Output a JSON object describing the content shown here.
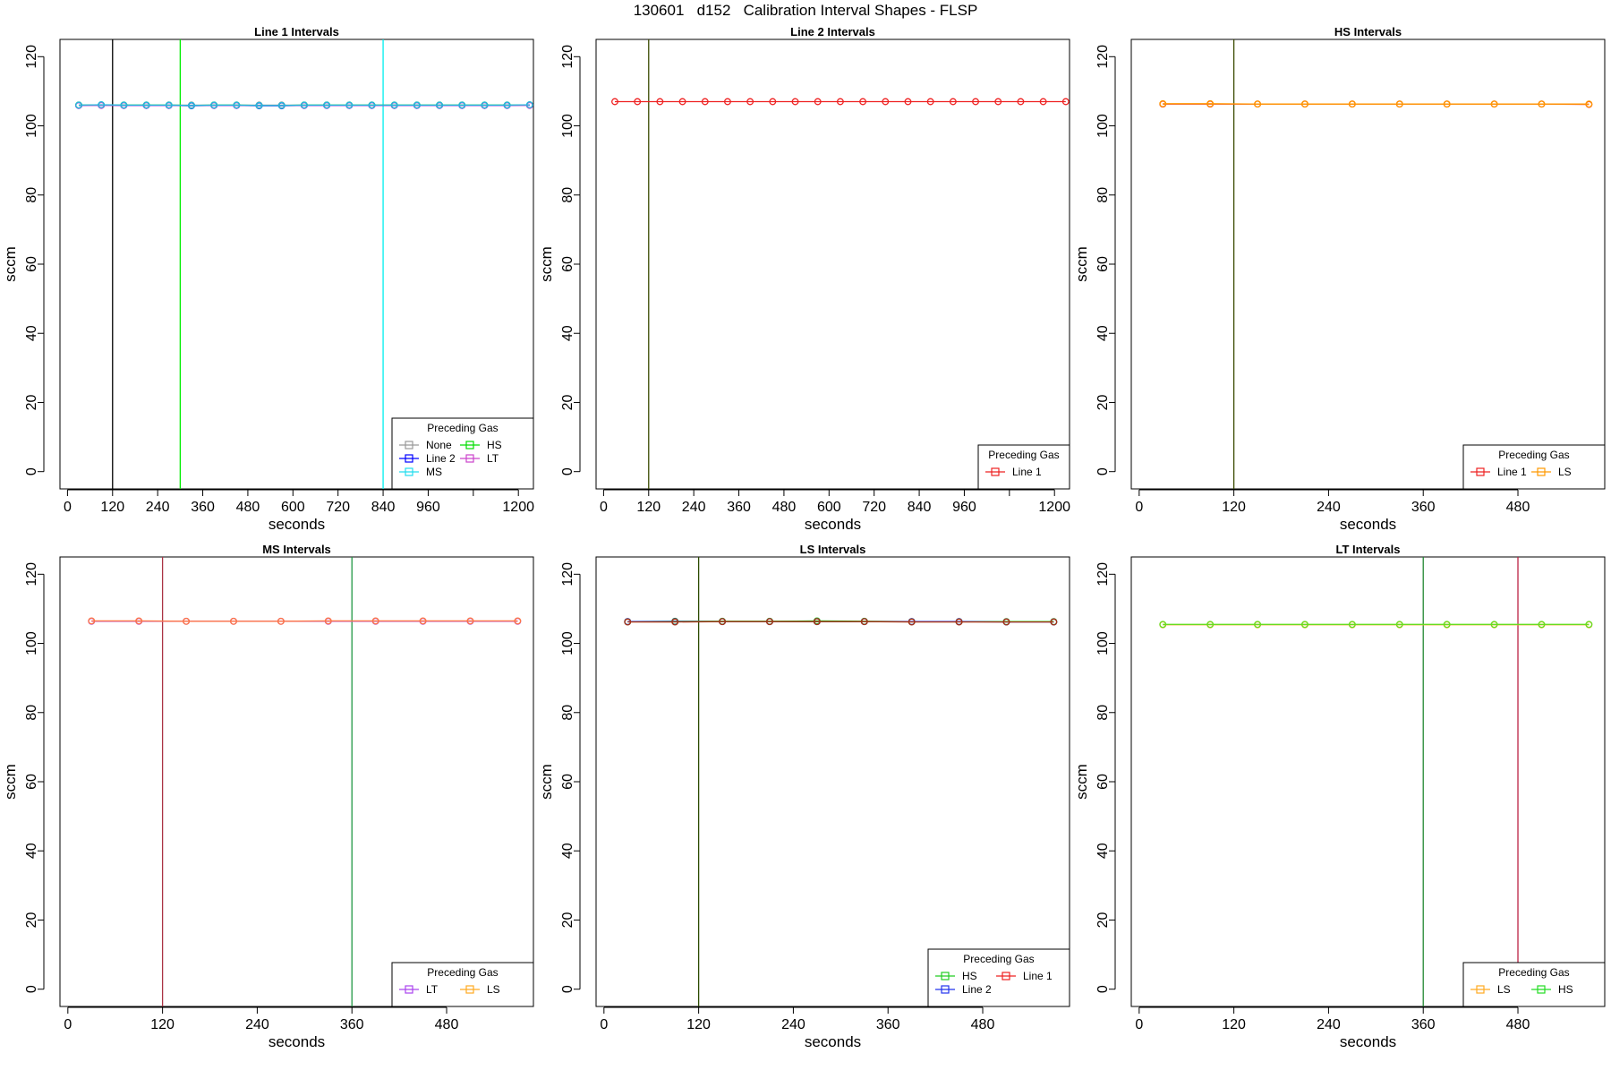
{
  "figure_title": "130601   d152   Calibration Interval Shapes - FLSP",
  "chart_data": [
    {
      "type": "line",
      "title": "Line 1 Intervals",
      "xlabel": "seconds",
      "ylabel": "sccm",
      "xlim": [
        -20,
        1240
      ],
      "ylim": [
        -5,
        125
      ],
      "xticks": [
        0,
        120,
        240,
        360,
        480,
        600,
        720,
        840,
        960,
        1080,
        1200
      ],
      "xtick_labels": [
        "0",
        "120",
        "240",
        "360",
        "480",
        "600",
        "720",
        "840",
        "960",
        "",
        "1200"
      ],
      "yticks": [
        0,
        20,
        40,
        60,
        80,
        100,
        120
      ],
      "vlines": [
        {
          "x": 120,
          "color": "#000000"
        },
        {
          "x": 300,
          "color": "#00ee00"
        },
        {
          "x": 840,
          "color": "#00eeee"
        }
      ],
      "series": [
        {
          "name": "None",
          "color": "#999999",
          "x": [
            30,
            90,
            150,
            210,
            270,
            330,
            390,
            450,
            510,
            570,
            630,
            690,
            750,
            810,
            870,
            930,
            990,
            1050,
            1110,
            1170,
            1230
          ],
          "y": [
            106,
            106,
            106,
            106,
            106,
            106,
            106,
            106,
            106,
            106,
            106,
            106,
            106,
            106,
            106,
            106,
            106,
            106,
            106,
            106,
            106
          ]
        },
        {
          "name": "Line 2",
          "color": "#0000ff",
          "x": [
            30,
            90,
            150,
            210,
            270,
            330,
            390,
            450,
            510,
            570,
            630,
            690,
            750,
            810,
            870,
            930,
            990,
            1050,
            1110,
            1170,
            1230
          ],
          "y": [
            105.9,
            106,
            105.9,
            105.9,
            105.9,
            105.8,
            105.9,
            105.9,
            105.8,
            105.8,
            105.9,
            105.9,
            105.9,
            105.9,
            105.9,
            105.9,
            105.9,
            105.9,
            105.9,
            105.9,
            106
          ]
        },
        {
          "name": "HS",
          "color": "#00dd00",
          "x": [
            30,
            90,
            150,
            210,
            270,
            330,
            390,
            450,
            510,
            570,
            630,
            690,
            750,
            810,
            870,
            930,
            990,
            1050,
            1110,
            1170,
            1230
          ],
          "y": [
            106,
            106,
            106,
            106,
            106,
            105.9,
            106,
            106,
            105.9,
            105.9,
            106,
            106,
            106,
            106,
            106,
            106,
            106,
            106,
            106,
            106,
            106
          ]
        },
        {
          "name": "LT",
          "color": "#cc44cc",
          "x": [
            30,
            90,
            150,
            210,
            270,
            330,
            390,
            450,
            510,
            570,
            630,
            690,
            750,
            810,
            870,
            930,
            990,
            1050,
            1110,
            1170,
            1230
          ],
          "y": [
            105.9,
            105.9,
            105.9,
            105.9,
            105.9,
            105.9,
            105.9,
            105.9,
            105.9,
            105.9,
            105.9,
            105.9,
            105.9,
            105.9,
            105.9,
            105.9,
            105.9,
            105.9,
            105.9,
            105.9,
            105.9
          ]
        },
        {
          "name": "MS",
          "color": "#22bbdd",
          "x": [
            30,
            90,
            150,
            210,
            270,
            330,
            390,
            450,
            510,
            570,
            630,
            690,
            750,
            810,
            870,
            930,
            990,
            1050,
            1110,
            1170,
            1230
          ],
          "y": [
            106,
            106.1,
            106,
            106,
            106,
            105.9,
            106,
            106,
            105.9,
            105.9,
            106,
            106,
            106,
            106,
            106,
            106,
            106,
            106,
            106,
            106,
            106.1
          ]
        }
      ],
      "legend": {
        "title": "Preceding Gas",
        "columns": 2,
        "entries": [
          "None",
          "HS",
          "Line 2",
          "LT",
          "MS"
        ],
        "colors": [
          "#999999",
          "#00dd00",
          "#0000ff",
          "#cc44cc",
          "#22ddee"
        ],
        "placement": "bottom-right"
      }
    },
    {
      "type": "line",
      "title": "Line 2 Intervals",
      "xlabel": "seconds",
      "ylabel": "sccm",
      "xlim": [
        -20,
        1240
      ],
      "ylim": [
        -5,
        125
      ],
      "xticks": [
        0,
        120,
        240,
        360,
        480,
        600,
        720,
        840,
        960,
        1080,
        1200
      ],
      "xtick_labels": [
        "0",
        "120",
        "240",
        "360",
        "480",
        "600",
        "720",
        "840",
        "960",
        "",
        "1200"
      ],
      "yticks": [
        0,
        20,
        40,
        60,
        80,
        100,
        120
      ],
      "vlines": [
        {
          "x": 120,
          "color": "#3a4a00"
        }
      ],
      "series": [
        {
          "name": "Line 1",
          "color": "#ee2222",
          "x": [
            30,
            90,
            150,
            210,
            270,
            330,
            390,
            450,
            510,
            570,
            630,
            690,
            750,
            810,
            870,
            930,
            990,
            1050,
            1110,
            1170,
            1230
          ],
          "y": [
            107,
            107,
            107,
            107,
            107,
            107,
            107,
            107,
            107,
            107,
            107,
            107,
            107,
            107,
            107,
            107,
            107,
            107,
            107,
            107,
            107
          ]
        }
      ],
      "legend": {
        "title": "Preceding Gas",
        "columns": 1,
        "entries": [
          "Line 1"
        ],
        "colors": [
          "#ee2222"
        ],
        "placement": "bottom-right"
      }
    },
    {
      "type": "line",
      "title": "HS Intervals",
      "xlabel": "seconds",
      "ylabel": "sccm",
      "xlim": [
        -10,
        590
      ],
      "ylim": [
        -5,
        125
      ],
      "xticks": [
        0,
        120,
        240,
        360,
        480
      ],
      "xtick_labels": [
        "0",
        "120",
        "240",
        "360",
        "480"
      ],
      "yticks": [
        0,
        20,
        40,
        60,
        80,
        100,
        120
      ],
      "vlines": [
        {
          "x": 120,
          "color": "#3a4a00"
        }
      ],
      "series": [
        {
          "name": "Line 1",
          "color": "#ee2222",
          "x": [
            30,
            90,
            150,
            210,
            270,
            330,
            390,
            450,
            510,
            570
          ],
          "y": [
            106.3,
            106.3,
            106.3,
            106.3,
            106.3,
            106.3,
            106.3,
            106.3,
            106.3,
            106.2
          ]
        },
        {
          "name": "LS",
          "color": "#ff9900",
          "x": [
            30,
            90,
            150,
            210,
            270,
            330,
            390,
            450,
            510,
            570
          ],
          "y": [
            106.4,
            106.4,
            106.3,
            106.3,
            106.3,
            106.3,
            106.3,
            106.3,
            106.3,
            106.3
          ]
        }
      ],
      "legend": {
        "title": "Preceding Gas",
        "columns": 2,
        "entries": [
          "Line 1",
          "LS"
        ],
        "colors": [
          "#ee2222",
          "#ff9900"
        ],
        "placement": "bottom-right"
      }
    },
    {
      "type": "line",
      "title": "MS Intervals",
      "xlabel": "seconds",
      "ylabel": "sccm",
      "xlim": [
        -10,
        590
      ],
      "ylim": [
        -5,
        125
      ],
      "xticks": [
        0,
        120,
        240,
        360,
        480
      ],
      "xtick_labels": [
        "0",
        "120",
        "240",
        "360",
        "480"
      ],
      "yticks": [
        0,
        20,
        40,
        60,
        80,
        100,
        120
      ],
      "vlines": [
        {
          "x": 120,
          "color": "#aa3344"
        },
        {
          "x": 360,
          "color": "#229944"
        }
      ],
      "series": [
        {
          "name": "LT",
          "color": "#aa44ee",
          "x": [
            30,
            90,
            150,
            210,
            270,
            330,
            390,
            450,
            510,
            570
          ],
          "y": [
            106.4,
            106.4,
            106.4,
            106.4,
            106.4,
            106.4,
            106.4,
            106.4,
            106.4,
            106.4
          ]
        },
        {
          "name": "LS",
          "color": "#ff7744",
          "x": [
            30,
            90,
            150,
            210,
            270,
            330,
            390,
            450,
            510,
            570
          ],
          "y": [
            106.5,
            106.5,
            106.4,
            106.4,
            106.4,
            106.5,
            106.5,
            106.5,
            106.5,
            106.5
          ]
        }
      ],
      "legend": {
        "title": "Preceding Gas",
        "columns": 2,
        "entries": [
          "LT",
          "LS"
        ],
        "colors": [
          "#aa44ee",
          "#ffaa22"
        ],
        "placement": "bottom-right"
      }
    },
    {
      "type": "line",
      "title": "LS Intervals",
      "xlabel": "seconds",
      "ylabel": "sccm",
      "xlim": [
        -10,
        590
      ],
      "ylim": [
        -5,
        125
      ],
      "xticks": [
        0,
        120,
        240,
        360,
        480
      ],
      "xtick_labels": [
        "0",
        "120",
        "240",
        "360",
        "480"
      ],
      "yticks": [
        0,
        20,
        40,
        60,
        80,
        100,
        120
      ],
      "vlines": [
        {
          "x": 120,
          "color": "#2a4a00"
        }
      ],
      "series": [
        {
          "name": "HS",
          "color": "#22cc22",
          "x": [
            30,
            90,
            150,
            210,
            270,
            330,
            390,
            450,
            510,
            570
          ],
          "y": [
            106.3,
            106.4,
            106.4,
            106.4,
            106.5,
            106.4,
            106.3,
            106.3,
            106.3,
            106.3
          ]
        },
        {
          "name": "Line 2",
          "color": "#2233ee",
          "x": [
            30,
            90,
            150,
            210,
            270,
            330,
            390,
            450,
            510,
            570
          ],
          "y": [
            106.3,
            106.3,
            106.3,
            106.3,
            106.3,
            106.3,
            106.3,
            106.3,
            106.2,
            106.2
          ]
        },
        {
          "name": "Line 1",
          "color": "#aa3311",
          "x": [
            30,
            90,
            150,
            210,
            270,
            330,
            390,
            450,
            510,
            570
          ],
          "y": [
            106.2,
            106.2,
            106.3,
            106.3,
            106.3,
            106.3,
            106.2,
            106.2,
            106.2,
            106.2
          ]
        }
      ],
      "legend": {
        "title": "Preceding Gas",
        "columns": 2,
        "entries": [
          "HS",
          "Line 1",
          "Line 2"
        ],
        "colors": [
          "#22cc22",
          "#ee2222",
          "#2233ee"
        ],
        "placement": "bottom-right"
      }
    },
    {
      "type": "line",
      "title": "LT Intervals",
      "xlabel": "seconds",
      "ylabel": "sccm",
      "xlim": [
        -10,
        590
      ],
      "ylim": [
        -5,
        125
      ],
      "xticks": [
        0,
        120,
        240,
        360,
        480
      ],
      "xtick_labels": [
        "0",
        "120",
        "240",
        "360",
        "480"
      ],
      "yticks": [
        0,
        20,
        40,
        60,
        80,
        100,
        120
      ],
      "vlines": [
        {
          "x": 360,
          "color": "#228833"
        },
        {
          "x": 480,
          "color": "#bb2244"
        }
      ],
      "series": [
        {
          "name": "LS",
          "color": "#ffaa22",
          "x": [
            30,
            90,
            150,
            210,
            270,
            330,
            390,
            450,
            510,
            570
          ],
          "y": [
            105.4,
            105.4,
            105.4,
            105.4,
            105.4,
            105.4,
            105.4,
            105.4,
            105.4,
            105.4
          ]
        },
        {
          "name": "HS",
          "color": "#66dd22",
          "x": [
            30,
            90,
            150,
            210,
            270,
            330,
            390,
            450,
            510,
            570
          ],
          "y": [
            105.5,
            105.5,
            105.5,
            105.5,
            105.5,
            105.5,
            105.5,
            105.5,
            105.5,
            105.5
          ]
        }
      ],
      "legend": {
        "title": "Preceding Gas",
        "columns": 2,
        "entries": [
          "LS",
          "HS"
        ],
        "colors": [
          "#ffaa22",
          "#22dd22"
        ],
        "placement": "bottom-right"
      }
    }
  ]
}
